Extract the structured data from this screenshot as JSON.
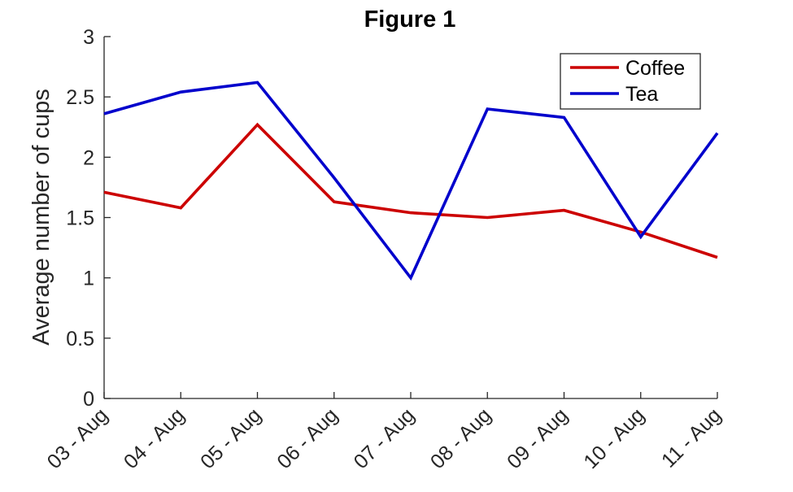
{
  "chart_data": {
    "type": "line",
    "title": "Figure 1",
    "xlabel": "",
    "ylabel": "Average number of cups",
    "categories": [
      "03 - Aug",
      "04 - Aug",
      "05 - Aug",
      "06 - Aug",
      "07 - Aug",
      "08 - Aug",
      "09 - Aug",
      "10 - Aug",
      "11 - Aug"
    ],
    "series": [
      {
        "name": "Coffee",
        "color": "#cc0000",
        "values": [
          1.71,
          1.58,
          2.27,
          1.63,
          1.54,
          1.5,
          1.56,
          1.38,
          1.17
        ]
      },
      {
        "name": "Tea",
        "color": "#0000cc",
        "values": [
          2.36,
          2.54,
          2.62,
          1.83,
          1.0,
          2.4,
          2.33,
          1.34,
          2.2
        ]
      }
    ],
    "ylim": [
      0,
      3
    ],
    "yticks": [
      "0",
      "0.5",
      "1",
      "1.5",
      "2",
      "2.5",
      "3"
    ],
    "grid": false,
    "legend_position": "top-right"
  }
}
